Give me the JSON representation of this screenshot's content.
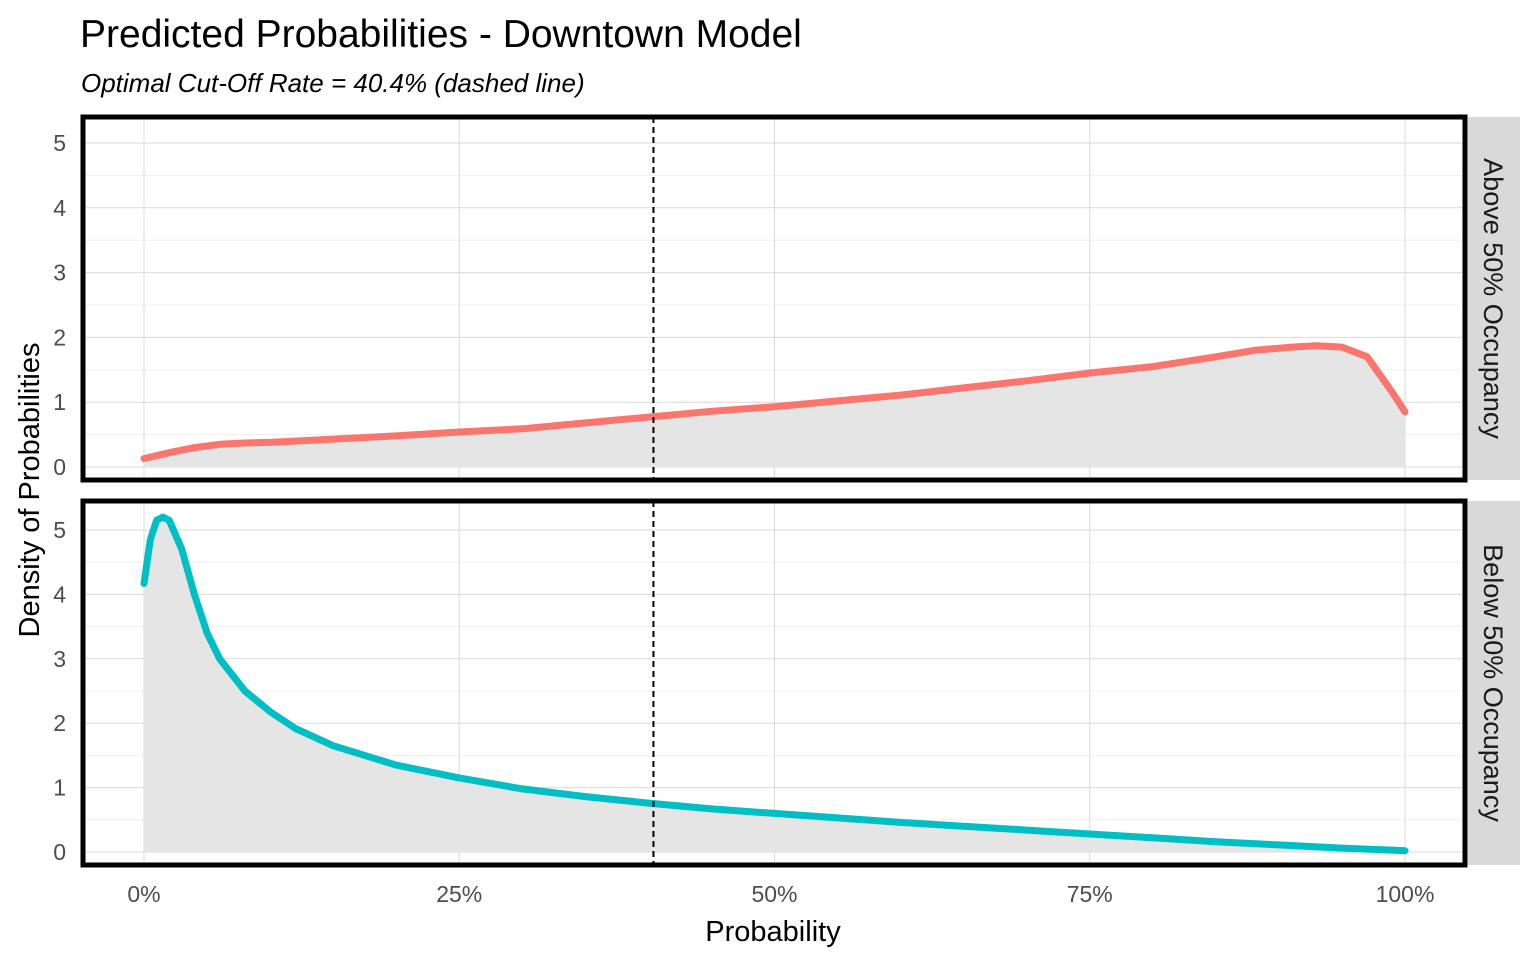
{
  "chart_data": {
    "type": "area",
    "title": "Predicted Probabilities - Downtown Model",
    "subtitle": "Optimal Cut-Off Rate = 40.4%  (dashed line)",
    "xlabel": "Probability",
    "ylabel": "Density of Probabilities",
    "xlim": [
      0,
      1
    ],
    "ylim": [
      0,
      5.2
    ],
    "x_ticks": [
      0,
      0.25,
      0.5,
      0.75,
      1.0
    ],
    "x_tick_labels": [
      "0%",
      "25%",
      "50%",
      "75%",
      "100%"
    ],
    "y_ticks": [
      0,
      1,
      2,
      3,
      4,
      5
    ],
    "y_tick_labels": [
      "0",
      "1",
      "2",
      "3",
      "4",
      "5"
    ],
    "cutoff": 0.404,
    "grid": true,
    "fill_color": "#e5e5e5",
    "panels": [
      {
        "strip_label": "Above 50% Occupancy",
        "color": "#f8766d",
        "x": [
          0,
          0.02,
          0.04,
          0.06,
          0.08,
          0.1,
          0.15,
          0.2,
          0.25,
          0.3,
          0.35,
          0.4,
          0.45,
          0.5,
          0.55,
          0.6,
          0.65,
          0.7,
          0.75,
          0.8,
          0.85,
          0.88,
          0.91,
          0.93,
          0.95,
          0.97,
          0.99,
          1.0
        ],
        "y": [
          0.13,
          0.22,
          0.3,
          0.35,
          0.37,
          0.38,
          0.43,
          0.48,
          0.54,
          0.59,
          0.68,
          0.77,
          0.86,
          0.93,
          1.02,
          1.11,
          1.22,
          1.33,
          1.45,
          1.55,
          1.7,
          1.8,
          1.85,
          1.87,
          1.85,
          1.7,
          1.15,
          0.85
        ]
      },
      {
        "strip_label": "Below 50% Occupancy",
        "color": "#00bfc4",
        "x": [
          0,
          0.005,
          0.01,
          0.015,
          0.02,
          0.03,
          0.04,
          0.05,
          0.06,
          0.08,
          0.1,
          0.12,
          0.15,
          0.2,
          0.25,
          0.3,
          0.35,
          0.4,
          0.45,
          0.5,
          0.55,
          0.6,
          0.65,
          0.7,
          0.75,
          0.8,
          0.85,
          0.9,
          0.95,
          1.0
        ],
        "y": [
          4.17,
          4.85,
          5.15,
          5.2,
          5.15,
          4.7,
          4.0,
          3.4,
          3.0,
          2.5,
          2.18,
          1.92,
          1.65,
          1.35,
          1.15,
          0.98,
          0.86,
          0.76,
          0.67,
          0.6,
          0.53,
          0.46,
          0.4,
          0.34,
          0.28,
          0.22,
          0.16,
          0.11,
          0.06,
          0.02
        ]
      }
    ]
  }
}
